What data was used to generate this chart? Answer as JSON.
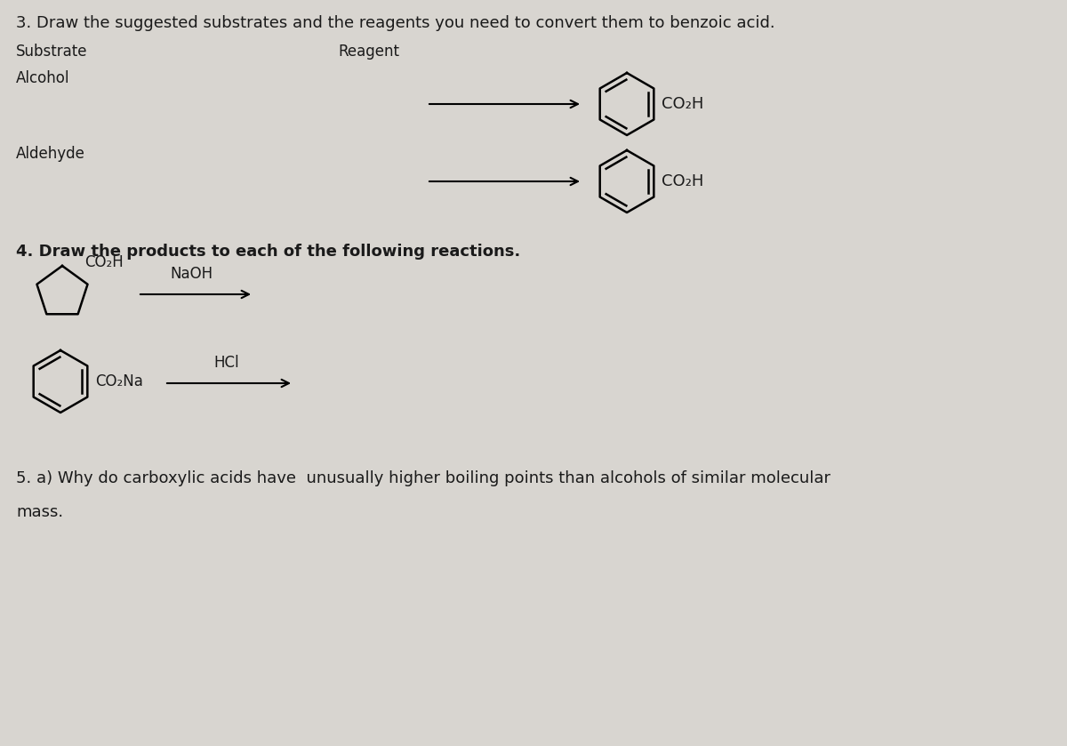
{
  "bg_color": "#d8d5d0",
  "text_color": "#1a1a1a",
  "title3": "3. Draw the suggested substrates and the reagents you need to convert them to benzoic acid.",
  "subtitle3a": "Substrate",
  "subtitle3b": "Reagent",
  "label_alcohol": "Alcohol",
  "label_aldehyde": "Aldehyde",
  "title4": "4. Draw the products to each of the following reactions.",
  "title5": "5. a) Why do carboxylic acids have  unusually higher boiling points than alcohols of similar molecular",
  "title5b": "mass.",
  "co2h_label": "CO₂H",
  "co2na_label": "CO₂Na",
  "naoh_label": "NaOH",
  "hcl_label": "HCl",
  "font_size_title": 13,
  "font_size_labels": 12,
  "font_size_mol": 11
}
